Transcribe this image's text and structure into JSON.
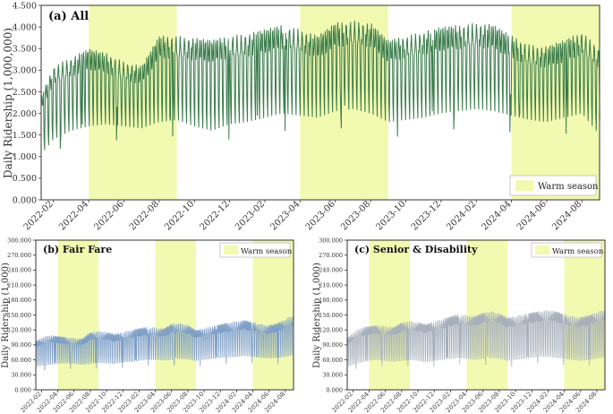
{
  "colors": {
    "warm": "#f2f9b0",
    "all_line": "#3c7d4c",
    "fair_line": "#7f9fc6",
    "senior_line": "#a6afba",
    "axis": "#333333"
  },
  "chart_data": [
    {
      "id": "all",
      "type": "line",
      "title": "(a) All",
      "ylabel": "Daily Ridership (1,000,000)",
      "ylim": [
        0,
        4500
      ],
      "yticks": [
        "0.000",
        "0.500",
        "1.000",
        "1.500",
        "2.000",
        "2.500",
        "3.000",
        "3.500",
        "4.000",
        "4.500"
      ],
      "xticks": [
        "2022-02",
        "2022-04",
        "2022-06",
        "2022-08",
        "2022-10",
        "2022-12",
        "2023-02",
        "2023-04",
        "2023-06",
        "2023-08",
        "2023-10",
        "2023-12",
        "2024-02",
        "2024-04",
        "2024-06",
        "2024-08",
        "2024-10"
      ],
      "x_range_months": [
        0.3,
        32.0
      ],
      "warm_seasons": [
        [
          3.0,
          8.0
        ],
        [
          15.0,
          20.0
        ],
        [
          27.0,
          32.0
        ]
      ],
      "legend": "Warm season",
      "legend_position": "bottom-right",
      "series_profile": {
        "peak_months": [
          0.3,
          1,
          2,
          3,
          4,
          5,
          6,
          7,
          8,
          9,
          10,
          11,
          12,
          13,
          14,
          15,
          16,
          17,
          18,
          19,
          20,
          21,
          22,
          23,
          24,
          25,
          26,
          27,
          28,
          29,
          30,
          31,
          32
        ],
        "weekday_peak": [
          2100,
          3100,
          3300,
          3500,
          3400,
          3200,
          3100,
          3800,
          3800,
          3750,
          3700,
          3800,
          3850,
          3950,
          4050,
          3950,
          3800,
          4100,
          4150,
          4100,
          3700,
          3800,
          3900,
          4000,
          4050,
          4100,
          4050,
          3800,
          3600,
          3550,
          3700,
          3900,
          3500
        ],
        "weekend_low": [
          900,
          1400,
          1600,
          1700,
          1750,
          1700,
          1650,
          1800,
          1850,
          1700,
          1600,
          1750,
          1800,
          1900,
          2000,
          1950,
          1900,
          2050,
          2100,
          2000,
          1800,
          1850,
          1900,
          2000,
          2050,
          2100,
          2050,
          1950,
          1850,
          1800,
          1900,
          2000,
          1500
        ]
      }
    },
    {
      "id": "fair",
      "type": "line",
      "title": "(b) Fair Fare",
      "ylabel": "Daily Ridership (1,000)",
      "ylim": [
        0,
        300000
      ],
      "yticks": [
        "0.000",
        "30.000",
        "60.000",
        "90.000",
        "120.000",
        "150.000",
        "180.000",
        "210.000",
        "240.000",
        "270.000",
        "300.000"
      ],
      "xticks": [
        "2022-02",
        "2022-04",
        "2022-06",
        "2022-08",
        "2022-10",
        "2022-12",
        "2023-02",
        "2023-04",
        "2023-06",
        "2023-08",
        "2023-10",
        "2023-12",
        "2024-02",
        "2024-04",
        "2024-06",
        "2024-08",
        "2024-10"
      ],
      "x_range_months": [
        0.3,
        32.0
      ],
      "warm_seasons": [
        [
          3.0,
          8.0
        ],
        [
          15.0,
          20.0
        ],
        [
          27.0,
          32.0
        ]
      ],
      "legend": "Warm season",
      "legend_position": "top-right",
      "series_profile": {
        "weekday_peak": [
          95000,
          105000,
          110000,
          108000,
          106000,
          104000,
          103000,
          115000,
          118000,
          116000,
          112000,
          116000,
          120000,
          124000,
          126000,
          125000,
          123000,
          132000,
          134000,
          130000,
          120000,
          124000,
          128000,
          132000,
          135000,
          138000,
          140000,
          136000,
          132000,
          130000,
          134000,
          142000,
          150000
        ],
        "weekend_low": [
          45000,
          48000,
          50000,
          52000,
          53000,
          52000,
          50000,
          52000,
          54000,
          53000,
          52000,
          55000,
          56000,
          58000,
          60000,
          60000,
          59000,
          60000,
          62000,
          61000,
          58000,
          60000,
          62000,
          64000,
          65000,
          66000,
          68000,
          66000,
          64000,
          63000,
          64000,
          66000,
          70000
        ]
      }
    },
    {
      "id": "senior",
      "type": "line",
      "title": "(c) Senior & Disability",
      "ylabel": "Daily Ridership (1,000)",
      "ylim": [
        0,
        300000
      ],
      "yticks": [
        "0.000",
        "30.000",
        "60.000",
        "90.000",
        "120.000",
        "150.000",
        "180.000",
        "210.000",
        "240.000",
        "270.000",
        "300.000"
      ],
      "xticks": [
        "2022-02",
        "2022-04",
        "2022-06",
        "2022-08",
        "2022-10",
        "2022-12",
        "2023-02",
        "2023-04",
        "2023-06",
        "2023-08",
        "2023-10",
        "2023-12",
        "2024-02",
        "2024-04",
        "2024-06",
        "2024-08",
        "2024-10"
      ],
      "x_range_months": [
        0.3,
        32.0
      ],
      "warm_seasons": [
        [
          3.0,
          8.0
        ],
        [
          15.0,
          20.0
        ],
        [
          27.0,
          32.0
        ]
      ],
      "legend": "Warm season",
      "legend_position": "top-right",
      "series_profile": {
        "weekday_peak": [
          100000,
          115000,
          125000,
          128000,
          130000,
          128000,
          126000,
          135000,
          138000,
          136000,
          132000,
          138000,
          142000,
          148000,
          152000,
          150000,
          148000,
          155000,
          158000,
          154000,
          145000,
          148000,
          152000,
          156000,
          158000,
          160000,
          158000,
          152000,
          148000,
          146000,
          150000,
          156000,
          162000
        ],
        "weekend_low": [
          45000,
          50000,
          55000,
          58000,
          60000,
          58000,
          56000,
          58000,
          60000,
          58000,
          55000,
          58000,
          60000,
          62000,
          64000,
          62000,
          60000,
          62000,
          64000,
          62000,
          58000,
          60000,
          62000,
          64000,
          66000,
          66000,
          64000,
          62000,
          60000,
          58000,
          60000,
          62000,
          65000
        ]
      }
    }
  ]
}
